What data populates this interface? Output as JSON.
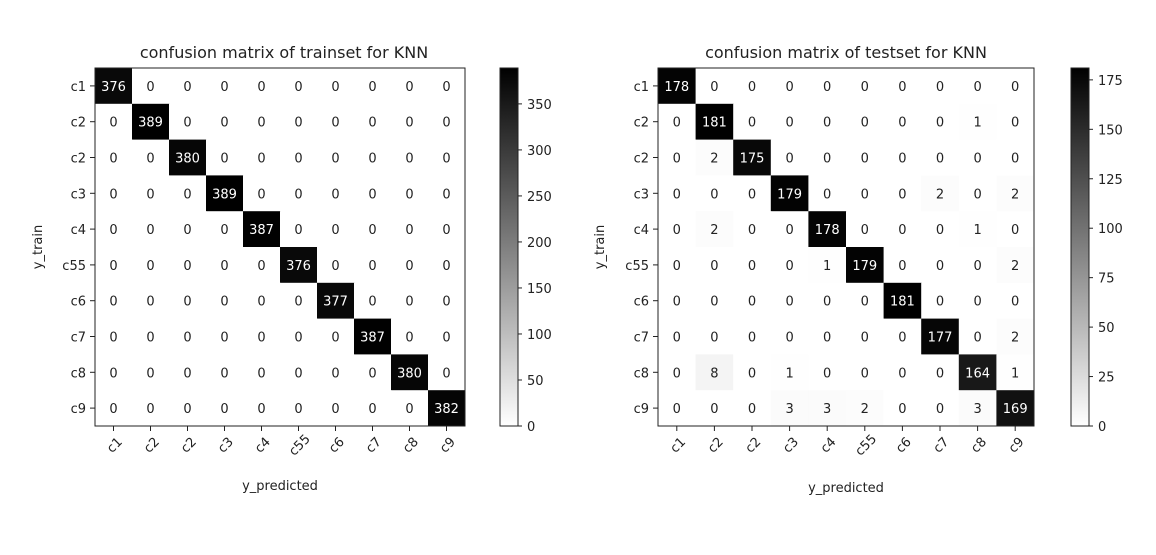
{
  "chart_data": [
    {
      "type": "heatmap",
      "title": "confusion matrix of trainset for KNN",
      "xlabel": "y_predicted",
      "ylabel": "y_train",
      "row_labels": [
        "c1",
        "c2",
        "c2",
        "c3",
        "c4",
        "c55",
        "c6",
        "c7",
        "c8",
        "c9"
      ],
      "col_labels": [
        "c1",
        "c2",
        "c2",
        "c3",
        "c4",
        "c55",
        "c6",
        "c7",
        "c8",
        "c9"
      ],
      "matrix": [
        [
          376,
          0,
          0,
          0,
          0,
          0,
          0,
          0,
          0,
          0
        ],
        [
          0,
          389,
          0,
          0,
          0,
          0,
          0,
          0,
          0,
          0
        ],
        [
          0,
          0,
          380,
          0,
          0,
          0,
          0,
          0,
          0,
          0
        ],
        [
          0,
          0,
          0,
          389,
          0,
          0,
          0,
          0,
          0,
          0
        ],
        [
          0,
          0,
          0,
          0,
          387,
          0,
          0,
          0,
          0,
          0
        ],
        [
          0,
          0,
          0,
          0,
          0,
          376,
          0,
          0,
          0,
          0
        ],
        [
          0,
          0,
          0,
          0,
          0,
          0,
          377,
          0,
          0,
          0
        ],
        [
          0,
          0,
          0,
          0,
          0,
          0,
          0,
          387,
          0,
          0
        ],
        [
          0,
          0,
          0,
          0,
          0,
          0,
          0,
          0,
          380,
          0
        ],
        [
          0,
          0,
          0,
          0,
          0,
          0,
          0,
          0,
          0,
          382
        ]
      ],
      "colorbar": {
        "min": 0,
        "max": 389,
        "ticks": [
          0,
          50,
          100,
          150,
          200,
          250,
          300,
          350
        ]
      },
      "colormap": "white-to-black"
    },
    {
      "type": "heatmap",
      "title": "confusion matrix of testset for KNN",
      "xlabel": "y_predicted",
      "ylabel": "y_train",
      "row_labels": [
        "c1",
        "c2",
        "c2",
        "c3",
        "c4",
        "c55",
        "c6",
        "c7",
        "c8",
        "c9"
      ],
      "col_labels": [
        "c1",
        "c2",
        "c2",
        "c3",
        "c4",
        "c55",
        "c6",
        "c7",
        "c8",
        "c9"
      ],
      "matrix": [
        [
          178,
          0,
          0,
          0,
          0,
          0,
          0,
          0,
          0,
          0
        ],
        [
          0,
          181,
          0,
          0,
          0,
          0,
          0,
          0,
          1,
          0
        ],
        [
          0,
          2,
          175,
          0,
          0,
          0,
          0,
          0,
          0,
          0
        ],
        [
          0,
          0,
          0,
          179,
          0,
          0,
          0,
          2,
          0,
          2
        ],
        [
          0,
          2,
          0,
          0,
          178,
          0,
          0,
          0,
          1,
          0
        ],
        [
          0,
          0,
          0,
          0,
          1,
          179,
          0,
          0,
          0,
          2
        ],
        [
          0,
          0,
          0,
          0,
          0,
          0,
          181,
          0,
          0,
          0
        ],
        [
          0,
          0,
          0,
          0,
          0,
          0,
          0,
          177,
          0,
          2
        ],
        [
          0,
          8,
          0,
          1,
          0,
          0,
          0,
          0,
          164,
          1
        ],
        [
          0,
          0,
          0,
          3,
          3,
          2,
          0,
          0,
          3,
          169
        ]
      ],
      "colorbar": {
        "min": 0,
        "max": 181,
        "ticks": [
          0,
          25,
          50,
          75,
          100,
          125,
          150,
          175
        ]
      },
      "colormap": "white-to-black"
    }
  ]
}
